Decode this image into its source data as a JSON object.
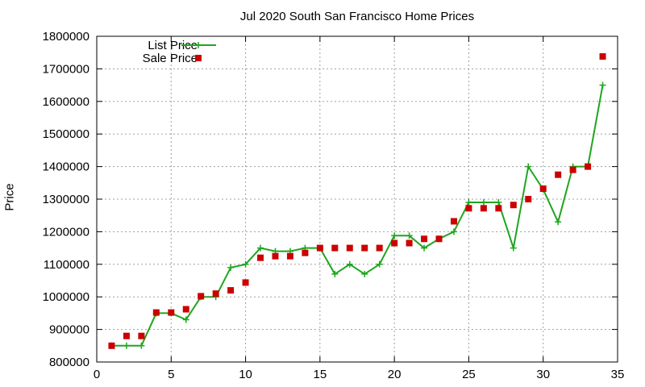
{
  "chart_data": {
    "type": "line",
    "title": "Jul 2020 South San Francisco Home Prices",
    "xlabel": "",
    "ylabel": "Price",
    "xlim": [
      0,
      35
    ],
    "ylim": [
      800000,
      1800000
    ],
    "xticks": [
      0,
      5,
      10,
      15,
      20,
      25,
      30,
      35
    ],
    "yticks": [
      800000,
      900000,
      1000000,
      1100000,
      1200000,
      1300000,
      1400000,
      1500000,
      1600000,
      1700000,
      1800000
    ],
    "grid": true,
    "legend_position": "top-left",
    "series": [
      {
        "name": "List Price",
        "style": "line+cross",
        "color": "#1ea61e",
        "x": [
          1,
          2,
          3,
          4,
          5,
          6,
          7,
          8,
          9,
          10,
          11,
          12,
          13,
          14,
          15,
          16,
          17,
          18,
          19,
          20,
          21,
          22,
          23,
          24,
          25,
          26,
          27,
          28,
          29,
          30,
          31,
          32,
          33,
          34
        ],
        "values": [
          850000,
          850000,
          850000,
          950000,
          950000,
          930000,
          1000000,
          1000000,
          1090000,
          1100000,
          1150000,
          1140000,
          1140000,
          1150000,
          1150000,
          1070000,
          1100000,
          1070000,
          1100000,
          1188000,
          1188000,
          1150000,
          1178000,
          1200000,
          1290000,
          1290000,
          1290000,
          1150000,
          1400000,
          1330000,
          1230000,
          1400000,
          1400000,
          1650000
        ]
      },
      {
        "name": "Sale Price",
        "style": "square",
        "color": "#cc0000",
        "x": [
          1,
          2,
          3,
          4,
          5,
          6,
          7,
          8,
          9,
          10,
          11,
          12,
          13,
          14,
          15,
          16,
          17,
          18,
          19,
          20,
          21,
          22,
          23,
          24,
          25,
          26,
          27,
          28,
          29,
          30,
          31,
          32,
          33,
          34
        ],
        "values": [
          850000,
          880000,
          880000,
          952000,
          952000,
          962000,
          1002000,
          1010000,
          1020000,
          1044000,
          1120000,
          1125000,
          1125000,
          1135000,
          1150000,
          1150000,
          1150000,
          1150000,
          1150000,
          1165000,
          1165000,
          1178000,
          1178000,
          1232000,
          1272000,
          1272000,
          1272000,
          1282000,
          1300000,
          1332000,
          1375000,
          1390000,
          1400000,
          1738000
        ]
      }
    ]
  }
}
